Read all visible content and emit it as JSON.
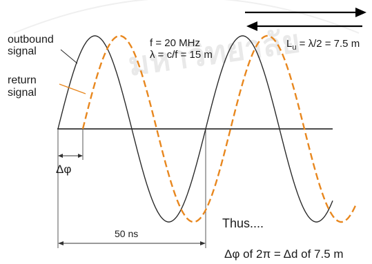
{
  "labels": {
    "outbound_line1": "outbound",
    "outbound_line2": "signal",
    "return_line1": "return",
    "return_line2": "signal",
    "frequency": "f = 20 MHz",
    "wavelength": "λ = c/f = 15 m",
    "unit_length": "L",
    "unit_length_sub": "u",
    "unit_length_value": " = λ/2 = 7.5 m",
    "phase_shift": "Δφ",
    "period": "50 ns",
    "thus": "Thus....",
    "conclusion": "Δφ of 2π = Δd of 7.5 m"
  },
  "colors": {
    "outbound": "#2b2b2b",
    "return": "#e8871e",
    "axis": "#111111"
  },
  "watermark": {
    "text": "มหาวิทยาลัย"
  }
}
